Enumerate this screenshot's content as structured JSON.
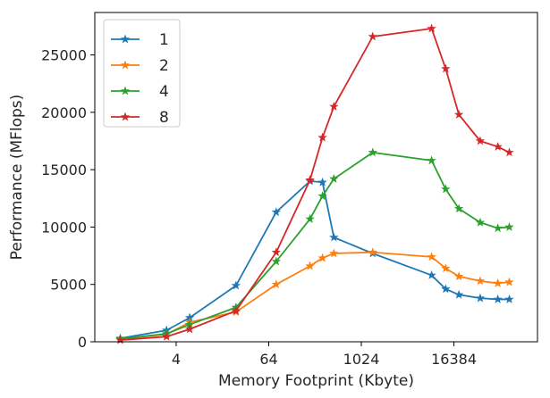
{
  "chart_data": {
    "type": "line",
    "xlabel": "Memory Footprint (Kbyte)",
    "ylabel": "Performance (MFlops)",
    "x_scale": "log2",
    "xlim": [
      0.35,
      200000
    ],
    "ylim": [
      0,
      28700
    ],
    "x_ticks": [
      {
        "value": 4,
        "label": "4"
      },
      {
        "value": 64,
        "label": "64"
      },
      {
        "value": 1024,
        "label": "1024"
      },
      {
        "value": 16384,
        "label": "16384"
      }
    ],
    "y_ticks": [
      {
        "value": 0,
        "label": "0"
      },
      {
        "value": 5000,
        "label": "5000"
      },
      {
        "value": 10000,
        "label": "10000"
      },
      {
        "value": 15000,
        "label": "15000"
      },
      {
        "value": 20000,
        "label": "20000"
      },
      {
        "value": 25000,
        "label": "25000"
      }
    ],
    "legend_position": "top-left",
    "marker": "star",
    "series": [
      {
        "name": "1",
        "color": "#1f77b4",
        "points": [
          [
            0.75,
            300
          ],
          [
            3,
            1000
          ],
          [
            6,
            2100
          ],
          [
            24,
            4900
          ],
          [
            80,
            11300
          ],
          [
            220,
            14000
          ],
          [
            320,
            13900
          ],
          [
            450,
            9100
          ],
          [
            1440,
            7700
          ],
          [
            8400,
            5800
          ],
          [
            12800,
            4600
          ],
          [
            19000,
            4100
          ],
          [
            36000,
            3800
          ],
          [
            61000,
            3700
          ],
          [
            86000,
            3700
          ]
        ]
      },
      {
        "name": "2",
        "color": "#ff7f0e",
        "points": [
          [
            0.75,
            250
          ],
          [
            3,
            650
          ],
          [
            6,
            1700
          ],
          [
            24,
            2600
          ],
          [
            80,
            5000
          ],
          [
            220,
            6600
          ],
          [
            320,
            7300
          ],
          [
            450,
            7700
          ],
          [
            1440,
            7800
          ],
          [
            8400,
            7400
          ],
          [
            12800,
            6400
          ],
          [
            19000,
            5700
          ],
          [
            36000,
            5300
          ],
          [
            61000,
            5100
          ],
          [
            86000,
            5200
          ]
        ]
      },
      {
        "name": "4",
        "color": "#2ca02c",
        "points": [
          [
            0.75,
            250
          ],
          [
            3,
            700
          ],
          [
            6,
            1500
          ],
          [
            24,
            3000
          ],
          [
            80,
            7000
          ],
          [
            220,
            10700
          ],
          [
            320,
            12700
          ],
          [
            450,
            14200
          ],
          [
            1440,
            16500
          ],
          [
            8400,
            15800
          ],
          [
            12800,
            13300
          ],
          [
            19000,
            11600
          ],
          [
            36000,
            10400
          ],
          [
            61000,
            9900
          ],
          [
            86000,
            10000
          ]
        ]
      },
      {
        "name": "8",
        "color": "#d62728",
        "points": [
          [
            0.75,
            150
          ],
          [
            3,
            450
          ],
          [
            6,
            1100
          ],
          [
            24,
            2700
          ],
          [
            80,
            7800
          ],
          [
            220,
            14100
          ],
          [
            320,
            17800
          ],
          [
            450,
            20500
          ],
          [
            1440,
            26600
          ],
          [
            8400,
            27300
          ],
          [
            12800,
            23800
          ],
          [
            19000,
            19800
          ],
          [
            36000,
            17500
          ],
          [
            61000,
            17000
          ],
          [
            86000,
            16500
          ]
        ]
      }
    ]
  }
}
